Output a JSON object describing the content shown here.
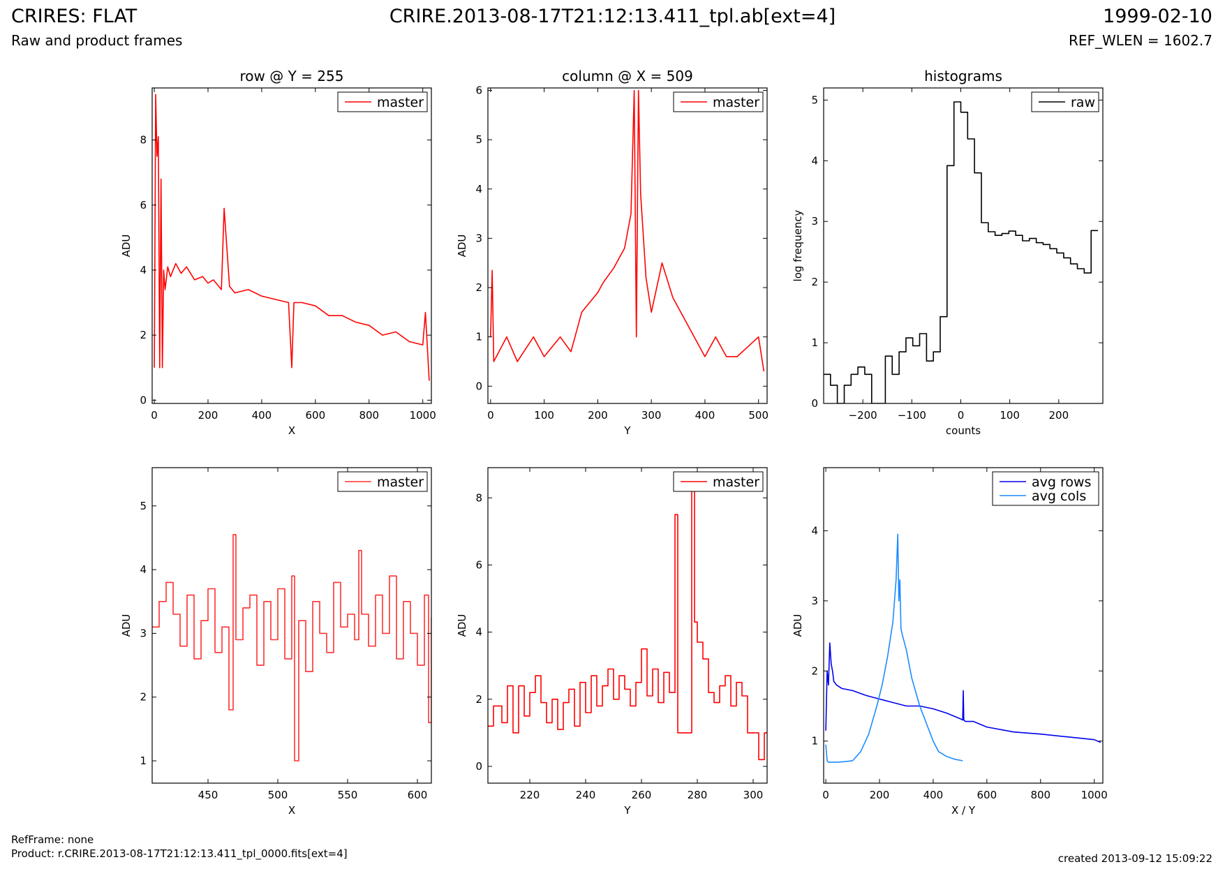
{
  "header": {
    "title_left": "CRIRES: FLAT",
    "subtitle_left": "Raw and product frames",
    "title_center": "CRIRE.2013-08-17T21:12:13.411_tpl.ab[ext=4]",
    "title_right": "1999-02-10",
    "subtitle_right": "REF_WLEN = 1602.7"
  },
  "footer": {
    "refframe": "RefFrame: none",
    "product": "Product: r.CRIRE.2013-08-17T21:12:13.411_tpl_0000.fits[ext=4]",
    "created": "created 2013-09-12 15:09:22"
  },
  "colors": {
    "red": "#ff0000",
    "red_light": "#ff3030",
    "blue": "#0000ee",
    "light_blue": "#1a8cff",
    "black": "#000000"
  },
  "chart_data": [
    {
      "id": "row",
      "type": "line",
      "title": "row @ Y = 255",
      "xlabel": "X",
      "ylabel": "ADU",
      "xlim": [
        -8,
        1032
      ],
      "ylim": [
        -0.1,
        9.6
      ],
      "xticks": [
        0,
        200,
        400,
        600,
        800,
        1000
      ],
      "yticks": [
        0,
        2,
        4,
        6,
        8
      ],
      "legend": "top-right",
      "series": [
        {
          "name": "master",
          "color": "#ff0000",
          "x": [
            0,
            5,
            10,
            15,
            20,
            25,
            30,
            35,
            40,
            50,
            60,
            80,
            100,
            120,
            150,
            180,
            200,
            220,
            250,
            260,
            280,
            300,
            350,
            400,
            450,
            500,
            512,
            520,
            550,
            600,
            650,
            700,
            750,
            800,
            850,
            900,
            950,
            1000,
            1010,
            1024
          ],
          "values": [
            1.0,
            9.4,
            7.5,
            8.1,
            1.0,
            6.8,
            1.0,
            4.0,
            3.4,
            4.1,
            3.8,
            4.2,
            3.9,
            4.1,
            3.7,
            3.8,
            3.6,
            3.7,
            3.4,
            5.9,
            3.5,
            3.3,
            3.4,
            3.2,
            3.1,
            3.0,
            1.0,
            3.0,
            3.0,
            2.9,
            2.6,
            2.6,
            2.4,
            2.3,
            2.0,
            2.1,
            1.8,
            1.7,
            2.7,
            0.6
          ]
        }
      ]
    },
    {
      "id": "column",
      "type": "line",
      "title": "column @ X = 509",
      "xlabel": "Y",
      "ylabel": "ADU",
      "xlim": [
        -5,
        516
      ],
      "ylim": [
        -0.35,
        6.05
      ],
      "xticks": [
        0,
        100,
        200,
        300,
        400,
        500
      ],
      "yticks": [
        0,
        1,
        2,
        3,
        4,
        5,
        6
      ],
      "legend": "top-right",
      "series": [
        {
          "name": "master",
          "color": "#ff0000",
          "x": [
            0,
            3,
            6,
            30,
            50,
            80,
            100,
            130,
            150,
            170,
            200,
            210,
            230,
            250,
            262,
            268,
            272,
            276,
            280,
            290,
            300,
            320,
            340,
            380,
            400,
            420,
            440,
            460,
            480,
            500,
            510
          ],
          "values": [
            1.0,
            2.35,
            0.5,
            1.0,
            0.5,
            1.0,
            0.6,
            1.0,
            0.7,
            1.5,
            1.9,
            2.1,
            2.4,
            2.8,
            3.5,
            6.0,
            1.0,
            6.0,
            3.9,
            2.2,
            1.5,
            2.5,
            1.8,
            1.0,
            0.6,
            1.0,
            0.6,
            0.6,
            0.8,
            1.0,
            0.3
          ]
        }
      ]
    },
    {
      "id": "histograms",
      "type": "line",
      "title": "histograms",
      "xlabel": "counts",
      "ylabel": "log frequency",
      "xlim": [
        -280,
        290
      ],
      "ylim": [
        0,
        5.2
      ],
      "xticks": [
        -200,
        -100,
        0,
        100,
        200
      ],
      "yticks": [
        0,
        1,
        2,
        3,
        4,
        5
      ],
      "legend": "top-right",
      "series": [
        {
          "name": "raw",
          "color": "#000000",
          "step": true,
          "x": [
            -280,
            -266,
            -252,
            -238,
            -224,
            -210,
            -196,
            -182,
            -168,
            -154,
            -140,
            -126,
            -112,
            -98,
            -84,
            -70,
            -56,
            -42,
            -28,
            -14,
            0,
            14,
            28,
            42,
            56,
            70,
            84,
            98,
            112,
            126,
            140,
            154,
            168,
            182,
            196,
            210,
            224,
            238,
            252,
            266,
            280
          ],
          "values": [
            0.48,
            0.3,
            0.0,
            0.3,
            0.48,
            0.6,
            0.48,
            0.0,
            0.0,
            0.78,
            0.48,
            0.85,
            1.08,
            0.95,
            1.15,
            0.7,
            0.85,
            1.43,
            3.92,
            4.97,
            4.8,
            4.36,
            3.8,
            2.98,
            2.83,
            2.77,
            2.8,
            2.84,
            2.77,
            2.68,
            2.72,
            2.65,
            2.62,
            2.55,
            2.48,
            2.4,
            2.3,
            2.22,
            2.15,
            2.85,
            2.85
          ]
        }
      ]
    },
    {
      "id": "row-zoom",
      "type": "line",
      "title": "",
      "xlabel": "X",
      "ylabel": "ADU",
      "xlim": [
        410,
        610
      ],
      "ylim": [
        0.65,
        5.6
      ],
      "xticks": [
        450,
        500,
        550,
        600
      ],
      "yticks": [
        1,
        2,
        3,
        4,
        5
      ],
      "legend": "top-right",
      "series": [
        {
          "name": "master",
          "color": "#ff3030",
          "step": true,
          "x": [
            410,
            415,
            420,
            425,
            430,
            435,
            440,
            445,
            450,
            455,
            460,
            465,
            468,
            470,
            475,
            480,
            485,
            490,
            495,
            500,
            505,
            510,
            512,
            515,
            520,
            525,
            530,
            535,
            540,
            545,
            550,
            555,
            558,
            560,
            565,
            570,
            575,
            580,
            585,
            590,
            595,
            600,
            605,
            608,
            610
          ],
          "values": [
            3.1,
            3.5,
            3.8,
            3.3,
            2.8,
            3.6,
            2.6,
            3.2,
            3.7,
            2.7,
            3.1,
            1.8,
            4.55,
            2.9,
            3.4,
            3.6,
            2.5,
            3.5,
            2.9,
            3.7,
            2.6,
            3.9,
            1.0,
            3.2,
            2.4,
            3.5,
            3.0,
            2.7,
            3.8,
            3.1,
            3.3,
            2.9,
            4.3,
            3.3,
            2.8,
            3.6,
            3.0,
            3.9,
            2.6,
            3.5,
            3.0,
            2.5,
            3.6,
            1.6,
            3.25
          ]
        }
      ]
    },
    {
      "id": "column-zoom",
      "type": "line",
      "title": "",
      "xlabel": "Y",
      "ylabel": "ADU",
      "xlim": [
        205,
        305
      ],
      "ylim": [
        -0.5,
        8.9
      ],
      "xticks": [
        220,
        240,
        260,
        280,
        300
      ],
      "yticks": [
        0,
        2,
        4,
        6,
        8
      ],
      "legend": "top-right",
      "series": [
        {
          "name": "master",
          "color": "#ff0000",
          "step": true,
          "x": [
            205,
            207,
            210,
            212,
            214,
            216,
            218,
            220,
            222,
            224,
            226,
            228,
            230,
            232,
            234,
            236,
            238,
            240,
            242,
            244,
            246,
            248,
            250,
            252,
            254,
            256,
            258,
            260,
            262,
            264,
            266,
            268,
            270,
            272,
            273,
            276,
            278,
            279,
            280,
            282,
            284,
            286,
            288,
            290,
            292,
            294,
            296,
            298,
            300,
            302,
            304,
            305
          ],
          "values": [
            1.2,
            1.8,
            1.3,
            2.4,
            1.0,
            2.4,
            1.5,
            2.2,
            2.7,
            1.9,
            1.3,
            2.0,
            1.1,
            1.9,
            2.3,
            1.2,
            2.5,
            1.6,
            2.7,
            1.8,
            2.4,
            2.9,
            2.0,
            2.7,
            2.3,
            1.8,
            2.5,
            3.5,
            2.1,
            2.9,
            1.9,
            2.8,
            2.2,
            7.5,
            1.0,
            1.0,
            8.5,
            4.3,
            3.7,
            3.2,
            2.2,
            1.9,
            2.4,
            2.7,
            1.8,
            2.5,
            2.1,
            1.0,
            1.0,
            0.2,
            1.0,
            1.0
          ]
        }
      ]
    },
    {
      "id": "averages",
      "type": "line",
      "title": "",
      "xlabel": "X / Y",
      "ylabel": "ADU",
      "xlim": [
        -8,
        1032
      ],
      "ylim": [
        0.4,
        4.9
      ],
      "xticks": [
        0,
        200,
        400,
        600,
        800,
        1000
      ],
      "yticks": [
        1,
        2,
        3,
        4
      ],
      "legend": "top-right",
      "series": [
        {
          "name": "avg rows",
          "color": "#0000ee",
          "x": [
            0,
            5,
            10,
            15,
            20,
            25,
            30,
            40,
            60,
            100,
            150,
            200,
            250,
            300,
            350,
            400,
            450,
            500,
            510,
            512,
            514,
            520,
            550,
            600,
            700,
            800,
            900,
            1000,
            1024
          ],
          "values": [
            1.15,
            2.0,
            1.8,
            2.4,
            2.1,
            2.0,
            1.85,
            1.8,
            1.75,
            1.72,
            1.65,
            1.6,
            1.55,
            1.5,
            1.5,
            1.46,
            1.4,
            1.32,
            1.3,
            1.72,
            1.3,
            1.28,
            1.28,
            1.2,
            1.13,
            1.1,
            1.06,
            1.02,
            0.98
          ]
        },
        {
          "name": "avg cols",
          "color": "#1a8cff",
          "x": [
            0,
            5,
            10,
            50,
            100,
            130,
            160,
            190,
            210,
            230,
            250,
            262,
            268,
            272,
            276,
            280,
            286,
            300,
            320,
            350,
            380,
            400,
            420,
            450,
            480,
            510
          ],
          "values": [
            0.95,
            0.72,
            0.7,
            0.7,
            0.72,
            0.85,
            1.1,
            1.5,
            1.8,
            2.2,
            2.7,
            3.3,
            3.95,
            3.0,
            3.3,
            2.6,
            2.5,
            2.3,
            1.9,
            1.5,
            1.2,
            1.0,
            0.85,
            0.78,
            0.74,
            0.72
          ]
        }
      ]
    }
  ]
}
